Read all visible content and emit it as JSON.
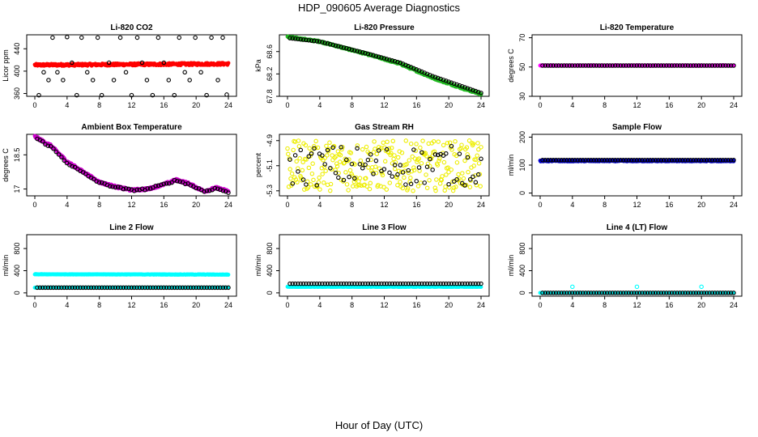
{
  "figure": {
    "title": "HDP_090605  Average Diagnostics",
    "xlabel": "Hour of Day (UTC)"
  },
  "chart_data": [
    {
      "type": "scatter",
      "title": "Li-820 CO2",
      "ylabel": "Licor ppm",
      "xlim": [
        0,
        24
      ],
      "xticks": [
        0,
        4,
        8,
        12,
        16,
        20,
        24
      ],
      "ylim": [
        355,
        465
      ],
      "yticks": [
        360,
        400,
        440
      ],
      "series": [
        {
          "name": "dense",
          "color": "#ff0000",
          "shape": "dot",
          "trend": [
            [
              0,
              411
            ],
            [
              24,
              413
            ]
          ],
          "jitter": 2
        },
        {
          "name": "average",
          "color": "#000000",
          "shape": "circle",
          "points": [
            [
              0.5,
              357
            ],
            [
              1.1,
              398
            ],
            [
              1.7,
              384
            ],
            [
              2.2,
              460
            ],
            [
              2.8,
              398
            ],
            [
              3.5,
              384
            ],
            [
              4.0,
              461
            ],
            [
              4.6,
              415
            ],
            [
              5.2,
              357
            ],
            [
              5.8,
              460
            ],
            [
              6.5,
              398
            ],
            [
              7.2,
              384
            ],
            [
              7.8,
              460
            ],
            [
              8.3,
              357
            ],
            [
              9.2,
              415
            ],
            [
              9.8,
              384
            ],
            [
              10.6,
              460
            ],
            [
              11.3,
              398
            ],
            [
              12.0,
              357
            ],
            [
              12.7,
              460
            ],
            [
              13.3,
              415
            ],
            [
              13.9,
              384
            ],
            [
              14.6,
              357
            ],
            [
              15.3,
              460
            ],
            [
              16.0,
              415
            ],
            [
              16.6,
              384
            ],
            [
              17.3,
              357
            ],
            [
              17.9,
              460
            ],
            [
              18.6,
              398
            ],
            [
              19.2,
              384
            ],
            [
              19.9,
              460
            ],
            [
              20.6,
              398
            ],
            [
              21.3,
              357
            ],
            [
              21.9,
              460
            ],
            [
              22.7,
              384
            ],
            [
              23.3,
              460
            ],
            [
              23.8,
              358
            ]
          ]
        }
      ]
    },
    {
      "type": "scatter",
      "title": "Li-820 Pressure",
      "ylabel": "kPa",
      "xlim": [
        0,
        24
      ],
      "xticks": [
        0,
        4,
        8,
        12,
        16,
        20,
        24
      ],
      "ylim": [
        67.8,
        68.9
      ],
      "yticks": [
        67.8,
        68.2,
        68.6
      ],
      "series": [
        {
          "name": "dense",
          "color": "#22bb22",
          "shape": "dot",
          "trend": [
            [
              0,
              68.86
            ],
            [
              4,
              68.78
            ],
            [
              10,
              68.55
            ],
            [
              14,
              68.38
            ],
            [
              18,
              68.13
            ],
            [
              22,
              67.93
            ],
            [
              24,
              67.84
            ]
          ],
          "jitter": 0.015
        },
        {
          "name": "average",
          "color": "#000000",
          "shape": "circle",
          "trend": [
            [
              0.3,
              68.84
            ],
            [
              4,
              68.78
            ],
            [
              10,
              68.56
            ],
            [
              14,
              68.4
            ],
            [
              18,
              68.16
            ],
            [
              22,
              67.96
            ],
            [
              24,
              67.86
            ]
          ],
          "count": 72,
          "jitter": 0
        }
      ]
    },
    {
      "type": "scatter",
      "title": "Li-820 Temperature",
      "ylabel": "degrees C",
      "xlim": [
        0,
        24
      ],
      "xticks": [
        0,
        4,
        8,
        12,
        16,
        20,
        24
      ],
      "ylim": [
        30,
        72
      ],
      "yticks": [
        30,
        50,
        70
      ],
      "series": [
        {
          "name": "dense",
          "color": "#ff00ff",
          "shape": "dot",
          "trend": [
            [
              0,
              51
            ],
            [
              24,
              51
            ]
          ],
          "jitter": 0.2
        },
        {
          "name": "average",
          "color": "#000000",
          "shape": "circle",
          "trend": [
            [
              0.3,
              51
            ],
            [
              24,
              51
            ]
          ],
          "count": 72,
          "jitter": 0
        }
      ]
    },
    {
      "type": "scatter",
      "title": "Ambient Box Temperature",
      "ylabel": "degrees C",
      "xlim": [
        0,
        24
      ],
      "xticks": [
        0,
        4,
        8,
        12,
        16,
        20,
        24
      ],
      "ylim": [
        16.7,
        19.4
      ],
      "yticks": [
        17.0,
        18.5
      ],
      "series": [
        {
          "name": "dense",
          "color": "#cc00cc",
          "shape": "dot",
          "trend": [
            [
              0,
              19.3
            ],
            [
              2,
              18.9
            ],
            [
              4,
              18.2
            ],
            [
              6,
              17.75
            ],
            [
              8,
              17.3
            ],
            [
              10,
              17.1
            ],
            [
              12,
              16.95
            ],
            [
              14,
              17.0
            ],
            [
              16,
              17.2
            ],
            [
              17.5,
              17.4
            ],
            [
              19,
              17.25
            ],
            [
              21,
              16.9
            ],
            [
              22.5,
              17.05
            ],
            [
              24,
              16.9
            ]
          ],
          "jitter": 0.05
        },
        {
          "name": "average",
          "color": "#000000",
          "shape": "circle",
          "trend": [
            [
              0.3,
              19.2
            ],
            [
              2,
              18.85
            ],
            [
              4,
              18.15
            ],
            [
              6,
              17.7
            ],
            [
              8,
              17.28
            ],
            [
              10,
              17.08
            ],
            [
              12,
              16.95
            ],
            [
              14,
              17.0
            ],
            [
              16,
              17.2
            ],
            [
              17.5,
              17.38
            ],
            [
              19,
              17.22
            ],
            [
              21,
              16.9
            ],
            [
              22.5,
              17.03
            ],
            [
              24,
              16.85
            ]
          ],
          "count": 72,
          "jitter": 0.04
        }
      ]
    },
    {
      "type": "scatter",
      "title": "Gas Stream RH",
      "ylabel": "percent",
      "xlim": [
        0,
        24
      ],
      "xticks": [
        0,
        4,
        8,
        12,
        16,
        20,
        24
      ],
      "ylim": [
        -5.34,
        -4.85
      ],
      "yticks": [
        -5.3,
        -5.1,
        -4.9
      ],
      "series": [
        {
          "name": "dense",
          "color": "#eeee00",
          "shape": "circle",
          "trend": [
            [
              0,
              -5.1
            ],
            [
              24,
              -5.1
            ]
          ],
          "jitter": 0.2,
          "count": 300
        },
        {
          "name": "average",
          "color": "#000000",
          "shape": "circle",
          "trend": [
            [
              0.3,
              -5.1
            ],
            [
              24,
              -5.1
            ]
          ],
          "jitter": 0.16,
          "count": 72
        }
      ]
    },
    {
      "type": "scatter",
      "title": "Sample Flow",
      "ylabel": "ml/min",
      "xlim": [
        0,
        24
      ],
      "xticks": [
        0,
        4,
        8,
        12,
        16,
        20,
        24
      ],
      "ylim": [
        -10,
        210
      ],
      "yticks": [
        0,
        100,
        200
      ],
      "series": [
        {
          "name": "dense",
          "color": "#0000cc",
          "shape": "dot",
          "trend": [
            [
              0,
              115
            ],
            [
              24,
              115
            ]
          ],
          "jitter": 2
        },
        {
          "name": "average",
          "color": "#000000",
          "shape": "circle",
          "trend": [
            [
              0.3,
              118
            ],
            [
              24,
              118
            ]
          ],
          "count": 72,
          "jitter": 0
        }
      ]
    },
    {
      "type": "scatter",
      "title": "Line 2 Flow",
      "ylabel": "ml/min",
      "xlim": [
        0,
        24
      ],
      "xticks": [
        0,
        4,
        8,
        12,
        16,
        20,
        24
      ],
      "ylim": [
        -60,
        1050
      ],
      "yticks": [
        0,
        400,
        800
      ],
      "series": [
        {
          "name": "dense-high",
          "color": "#00ffff",
          "shape": "dot",
          "trend": [
            [
              0,
              335
            ],
            [
              24,
              330
            ]
          ],
          "jitter": 4
        },
        {
          "name": "dense-low",
          "color": "#00ffff",
          "shape": "dot",
          "trend": [
            [
              0,
              95
            ],
            [
              24,
              95
            ]
          ],
          "jitter": 2
        },
        {
          "name": "average",
          "color": "#000000",
          "shape": "circle",
          "trend": [
            [
              0.3,
              95
            ],
            [
              24,
              95
            ]
          ],
          "count": 72,
          "jitter": 0
        }
      ]
    },
    {
      "type": "scatter",
      "title": "Line 3 Flow",
      "ylabel": "ml/min",
      "xlim": [
        0,
        24
      ],
      "xticks": [
        0,
        4,
        8,
        12,
        16,
        20,
        24
      ],
      "ylim": [
        -60,
        1050
      ],
      "yticks": [
        0,
        400,
        800
      ],
      "series": [
        {
          "name": "dense",
          "color": "#00ffff",
          "shape": "dot",
          "trend": [
            [
              0,
              110
            ],
            [
              24,
              110
            ]
          ],
          "jitter": 4
        },
        {
          "name": "average",
          "color": "#000000",
          "shape": "circle",
          "trend": [
            [
              0.3,
              165
            ],
            [
              24,
              165
            ]
          ],
          "count": 72,
          "jitter": 0
        }
      ]
    },
    {
      "type": "scatter",
      "title": "Line 4 (LT) Flow",
      "ylabel": "ml/min",
      "xlim": [
        0,
        24
      ],
      "xticks": [
        0,
        4,
        8,
        12,
        16,
        20,
        24
      ],
      "ylim": [
        -60,
        1050
      ],
      "yticks": [
        0,
        400,
        800
      ],
      "series": [
        {
          "name": "dense",
          "color": "#00ffff",
          "shape": "dot",
          "trend": [
            [
              0,
              0
            ],
            [
              24,
              0
            ]
          ],
          "jitter": 1
        },
        {
          "name": "spikes",
          "color": "#00ffff",
          "shape": "circle",
          "points": [
            [
              4.0,
              110
            ],
            [
              12.0,
              110
            ],
            [
              20.0,
              110
            ]
          ]
        },
        {
          "name": "average",
          "color": "#000000",
          "shape": "circle",
          "trend": [
            [
              0.3,
              0
            ],
            [
              24,
              0
            ]
          ],
          "count": 72,
          "jitter": 0
        }
      ]
    }
  ]
}
